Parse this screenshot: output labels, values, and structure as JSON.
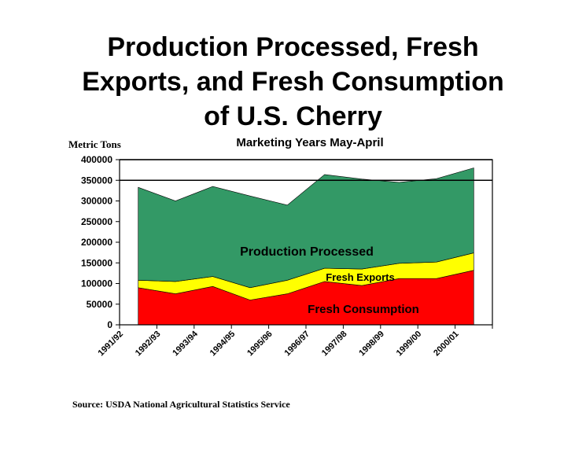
{
  "title_lines": [
    "Production Processed, Fresh",
    "Exports, and Fresh Consumption",
    "of U.S. Cherry"
  ],
  "source": "Source: USDA National Agricultural Statistics Service",
  "chart_data": {
    "type": "area",
    "stacked": true,
    "title": "Marketing Years May-April",
    "ylabel": "Metric Tons",
    "xlabel": "",
    "ylim": [
      0,
      400000
    ],
    "yticks": [
      0,
      50000,
      100000,
      150000,
      200000,
      250000,
      300000,
      350000,
      400000
    ],
    "ytick_labels": [
      "0",
      "50000",
      "100000",
      "150000",
      "200000",
      "250000",
      "300000",
      "350000",
      "400000"
    ],
    "gridlines_at": [
      350000,
      400000
    ],
    "categories": [
      "1991/92",
      "1992/93",
      "1993/94",
      "1994/95",
      "1995/96",
      "1996/97",
      "1997/98",
      "1998/99",
      "1999/00",
      "2000/01"
    ],
    "series": [
      {
        "name": "Fresh  Consumption",
        "color": "#ff0000",
        "values": [
          90000,
          75000,
          93000,
          60000,
          75000,
          105000,
          95000,
          112000,
          112000,
          132000
        ]
      },
      {
        "name": "Fresh Exports",
        "color": "#ffff00",
        "values": [
          18000,
          30000,
          24000,
          30000,
          33000,
          32000,
          40000,
          37000,
          40000,
          42000
        ]
      },
      {
        "name": "Production Processed",
        "color": "#339966",
        "values": [
          225000,
          195000,
          218000,
          222000,
          182000,
          227000,
          218000,
          196000,
          202000,
          206000
        ]
      }
    ]
  }
}
